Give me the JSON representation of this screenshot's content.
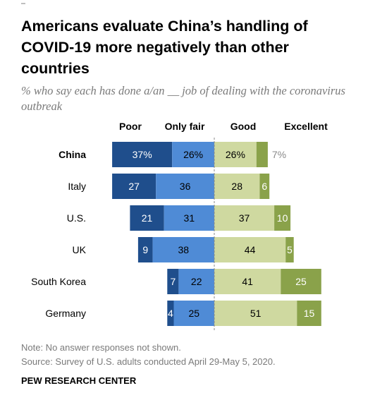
{
  "title": "Americans evaluate China’s handling of COVID-19 more negatively than other countries",
  "subtitle": "% who say each has done a/an __ job of dealing with the coronavirus outbreak",
  "note": "Note: No answer responses not shown.",
  "source": "Source: Survey of U.S. adults conducted April 29-May 5, 2020.",
  "credit": "PEW RESEARCH CENTER",
  "colors": {
    "poor": "#1f4e8c",
    "only_fair": "#4f8bd6",
    "good": "#cfd9a0",
    "excellent": "#8aa24a",
    "divider": "#888888"
  },
  "chart_data": {
    "type": "bar",
    "orientation": "horizontal",
    "stacking": "diverging",
    "categories": [
      "China",
      "Italy",
      "U.S.",
      "UK",
      "South Korea",
      "Germany"
    ],
    "series": [
      {
        "name": "Poor",
        "values": [
          37,
          27,
          21,
          9,
          7,
          4
        ],
        "labels": [
          "37%",
          "27",
          "21",
          "9",
          "7",
          "4"
        ]
      },
      {
        "name": "Only fair",
        "values": [
          26,
          36,
          31,
          38,
          22,
          25
        ],
        "labels": [
          "26%",
          "36",
          "31",
          "38",
          "22",
          "25"
        ]
      },
      {
        "name": "Good",
        "values": [
          26,
          28,
          37,
          44,
          41,
          51
        ],
        "labels": [
          "26%",
          "28",
          "37",
          "44",
          "41",
          "51"
        ]
      },
      {
        "name": "Excellent",
        "values": [
          7,
          6,
          10,
          5,
          25,
          15
        ],
        "labels": [
          "7%",
          "6",
          "10",
          "5",
          "25",
          "15"
        ]
      }
    ]
  }
}
